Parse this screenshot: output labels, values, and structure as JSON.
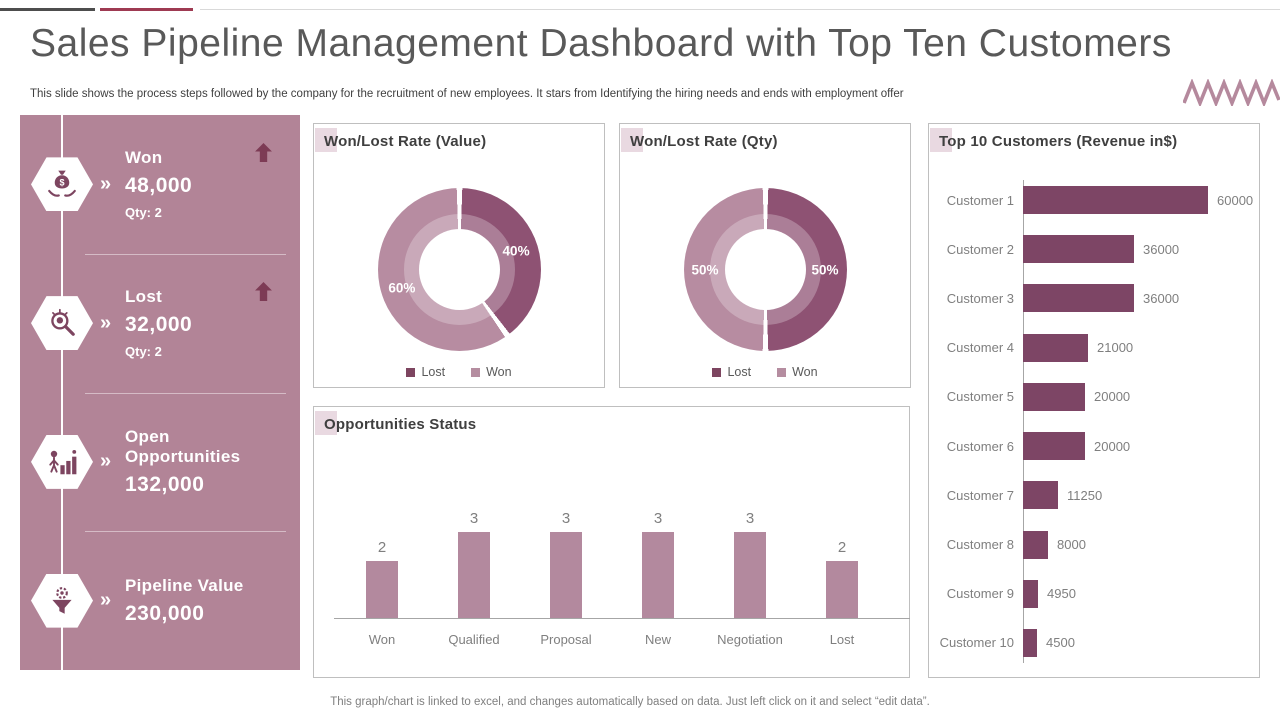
{
  "page": {
    "title": "Sales Pipeline Management Dashboard with Top Ten Customers",
    "subtitle": "This slide shows the process steps followed by the company for the recruitment of new employees. It stars from Identifying the hiring needs and ends with employment offer",
    "footer": "This graph/chart is linked to excel, and changes automatically based on data. Just left click on it and select “edit data”."
  },
  "theme": {
    "sidebar_bg": "#B28497",
    "accent_dark": "#7D4560",
    "accent_light": "#B78CA1",
    "panel_border": "#BFBFBF",
    "muted_text": "#7F7F7F"
  },
  "sidebar": {
    "items": [
      {
        "label": "Won",
        "value": "48,000",
        "qty": "Qty: 2",
        "icon": "money-bag-hands-icon",
        "trend": "up"
      },
      {
        "label": "Lost",
        "value": "32,000",
        "qty": "Qty: 2",
        "icon": "search-idea-icon",
        "trend": "up"
      },
      {
        "label": "Open Opportunities",
        "value": "132,000",
        "icon": "growth-person-icon"
      },
      {
        "label": "Pipeline Value",
        "value": "230,000",
        "icon": "funnel-gear-icon"
      }
    ]
  },
  "chart_data": [
    {
      "type": "donut",
      "title": "Won/Lost Rate (Value)",
      "series": [
        {
          "name": "Lost",
          "value": 40
        },
        {
          "name": "Won",
          "value": 60
        }
      ],
      "slice_labels": [
        "40%",
        "60%"
      ],
      "colors": [
        "#8E5273",
        "#B78CA1"
      ],
      "legend": [
        {
          "label": "Lost",
          "color": "#7D4560"
        },
        {
          "label": "Won",
          "color": "#B58DA0"
        }
      ],
      "legend_position": "bottom"
    },
    {
      "type": "donut",
      "title": "Won/Lost Rate (Qty)",
      "series": [
        {
          "name": "Lost",
          "value": 50
        },
        {
          "name": "Won",
          "value": 50
        }
      ],
      "slice_labels": [
        "50%",
        "50%"
      ],
      "colors": [
        "#8E5273",
        "#B78CA1"
      ],
      "legend": [
        {
          "label": "Lost",
          "color": "#7D4560"
        },
        {
          "label": "Won",
          "color": "#B58DA0"
        }
      ],
      "legend_position": "bottom"
    },
    {
      "type": "bar",
      "title": "Opportunities Status",
      "categories": [
        "Won",
        "Qualified",
        "Proposal",
        "New",
        "Negotiation",
        "Lost"
      ],
      "values": [
        2,
        3,
        3,
        3,
        3,
        2
      ],
      "bar_color": "#B3899E",
      "ylim": [
        0,
        3
      ],
      "grid": false,
      "data_labels": true
    },
    {
      "type": "hbar",
      "title": "Top 10 Customers (Revenue in$)",
      "categories": [
        "Customer 1",
        "Customer 2",
        "Customer 3",
        "Customer 4",
        "Customer 5",
        "Customer 6",
        "Customer 7",
        "Customer 8",
        "Customer 9",
        "Customer 10"
      ],
      "values": [
        60000,
        36000,
        36000,
        21000,
        20000,
        20000,
        11250,
        8000,
        4950,
        4500
      ],
      "bar_color": "#7D4565",
      "xmax": 60000,
      "grid": false,
      "data_labels": true
    }
  ]
}
